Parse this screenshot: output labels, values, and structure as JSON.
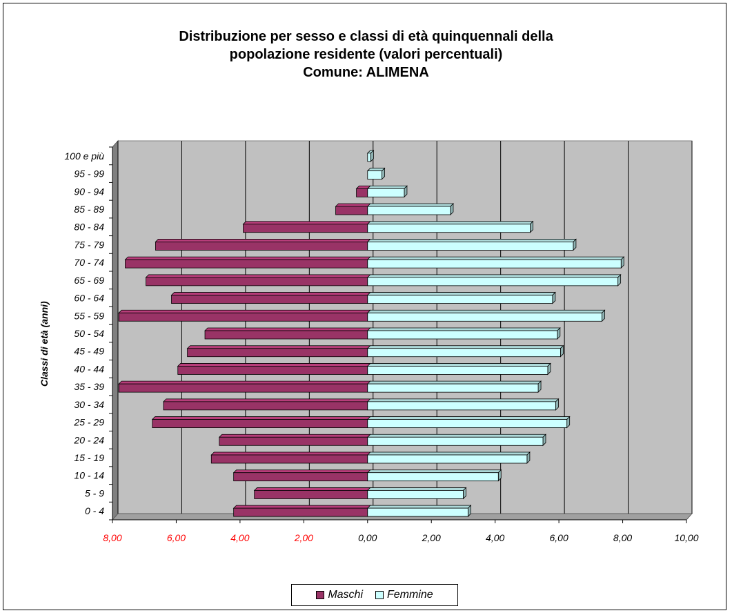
{
  "chart_data": {
    "type": "bar",
    "orientation": "horizontal",
    "title_lines": [
      "Distribuzione per sesso e classi di età quinquennali della",
      "popolazione residente (valori percentuali)",
      "Comune: ALIMENA"
    ],
    "ylabel": "Classi di età (anni)",
    "xlabel": "",
    "categories": [
      "0 - 4",
      "5 - 9",
      "10 - 14",
      "15 - 19",
      "20 - 24",
      "25 - 29",
      "30 - 34",
      "35 - 39",
      "40 - 44",
      "45 - 49",
      "50 - 54",
      "55 - 59",
      "60 - 64",
      "65 - 69",
      "70 - 74",
      "75 - 79",
      "80 - 84",
      "85 - 89",
      "90 - 94",
      "95 - 99",
      "100 e più"
    ],
    "series": [
      {
        "name": "Maschi",
        "color": "#993366",
        "values": [
          4.2,
          3.55,
          4.2,
          4.9,
          4.65,
          6.75,
          6.4,
          7.8,
          5.95,
          5.65,
          5.1,
          7.8,
          6.15,
          6.95,
          7.6,
          6.65,
          3.9,
          1.0,
          0.35,
          0.0,
          0.0
        ]
      },
      {
        "name": "Femmine",
        "color": "#ccffff",
        "values": [
          3.15,
          3.0,
          4.1,
          5.0,
          5.5,
          6.25,
          5.9,
          5.35,
          5.65,
          6.05,
          5.95,
          7.35,
          5.8,
          7.85,
          7.95,
          6.45,
          5.1,
          2.6,
          1.15,
          0.45,
          0.1
        ]
      }
    ],
    "xlim": [
      -8,
      10
    ],
    "x_ticks": [
      -8,
      -6,
      -4,
      -2,
      0,
      2,
      4,
      6,
      8,
      10
    ],
    "x_tick_labels": [
      "8,00",
      "6,00",
      "4,00",
      "2,00",
      "0,00",
      "2,00",
      "4,00",
      "6,00",
      "8,00",
      "10,00"
    ],
    "x_tick_colors": [
      "#ff0000",
      "#ff0000",
      "#ff0000",
      "#ff0000",
      "#000000",
      "#000000",
      "#000000",
      "#000000",
      "#000000",
      "#000000"
    ],
    "grid": true,
    "plot_background": "#c0c0c0",
    "legend_position": "bottom"
  }
}
